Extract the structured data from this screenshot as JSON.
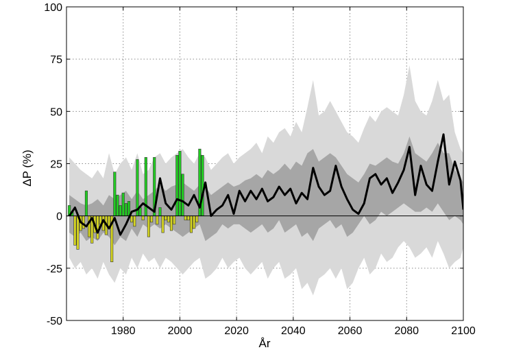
{
  "chart_data": {
    "type": "line",
    "xlabel": "År",
    "ylabel": "ΔP (%)",
    "xlim": [
      1960,
      2100
    ],
    "ylim": [
      -50,
      100
    ],
    "x_ticks": [
      1980,
      2000,
      2020,
      2040,
      2060,
      2080,
      2100
    ],
    "x_tick_labels": [
      "1980",
      "2000",
      "2020",
      "2040",
      "2060",
      "2080",
      "2100"
    ],
    "y_ticks": [
      100,
      75,
      50,
      25,
      0,
      -25,
      -50
    ],
    "y_tick_labels": [
      "100",
      "75",
      "50",
      "25",
      "0",
      "-25",
      "-50"
    ],
    "grid": true,
    "colors": {
      "outer_band": "#d9d9d9",
      "inner_band": "#a6a6a6",
      "median_line": "#000000",
      "observed_positive": "#22cc22",
      "observed_negative": "#d4d422",
      "zero_line": "#000000"
    },
    "x": [
      1961,
      1963,
      1965,
      1967,
      1969,
      1971,
      1973,
      1975,
      1977,
      1979,
      1981,
      1983,
      1985,
      1987,
      1989,
      1991,
      1993,
      1995,
      1997,
      1999,
      2001,
      2003,
      2005,
      2007,
      2009,
      2011,
      2013,
      2015,
      2017,
      2019,
      2021,
      2023,
      2025,
      2027,
      2029,
      2031,
      2033,
      2035,
      2037,
      2039,
      2041,
      2043,
      2045,
      2047,
      2049,
      2051,
      2053,
      2055,
      2057,
      2059,
      2061,
      2063,
      2065,
      2067,
      2069,
      2071,
      2073,
      2075,
      2077,
      2079,
      2081,
      2083,
      2085,
      2087,
      2089,
      2091,
      2093,
      2095,
      2097,
      2099,
      2100
    ],
    "series": [
      {
        "role": "outer-band",
        "upper": [
          28,
          25,
          22,
          20,
          18,
          22,
          18,
          30,
          20,
          25,
          28,
          22,
          30,
          20,
          22,
          28,
          30,
          25,
          28,
          30,
          32,
          28,
          25,
          30,
          28,
          22,
          25,
          28,
          30,
          25,
          28,
          30,
          32,
          35,
          30,
          38,
          35,
          40,
          42,
          38,
          45,
          40,
          52,
          65,
          48,
          50,
          55,
          50,
          45,
          40,
          38,
          35,
          42,
          48,
          45,
          50,
          52,
          50,
          48,
          58,
          72,
          55,
          50,
          48,
          55,
          65,
          55,
          58,
          40,
          32,
          30
        ],
        "lower": [
          -20,
          -25,
          -22,
          -28,
          -25,
          -30,
          -22,
          -28,
          -32,
          -25,
          -28,
          -20,
          -25,
          -18,
          -22,
          -20,
          -25,
          -20,
          -22,
          -25,
          -28,
          -25,
          -22,
          -20,
          -30,
          -28,
          -25,
          -20,
          -25,
          -22,
          -20,
          -25,
          -28,
          -25,
          -22,
          -30,
          -25,
          -22,
          -30,
          -28,
          -25,
          -35,
          -32,
          -38,
          -30,
          -28,
          -25,
          -30,
          -25,
          -35,
          -32,
          -25,
          -20,
          -28,
          -25,
          -18,
          -22,
          -20,
          -15,
          -12,
          -15,
          -20,
          -18,
          -15,
          -20,
          -12,
          -18,
          -25,
          -22,
          -20,
          -15
        ]
      },
      {
        "role": "inner-band",
        "upper": [
          10,
          8,
          6,
          5,
          6,
          8,
          5,
          10,
          8,
          10,
          12,
          8,
          12,
          8,
          10,
          12,
          15,
          12,
          14,
          15,
          16,
          14,
          12,
          15,
          14,
          10,
          12,
          14,
          16,
          14,
          15,
          17,
          18,
          20,
          18,
          22,
          20,
          22,
          25,
          22,
          26,
          24,
          30,
          32,
          26,
          28,
          30,
          28,
          24,
          20,
          18,
          16,
          20,
          25,
          24,
          26,
          28,
          26,
          25,
          30,
          38,
          30,
          28,
          26,
          30,
          35,
          30,
          30,
          22,
          18,
          16
        ],
        "lower": [
          -8,
          -10,
          -8,
          -12,
          -10,
          -12,
          -8,
          -10,
          -14,
          -10,
          -12,
          -6,
          -10,
          -4,
          -6,
          -4,
          -6,
          -4,
          -6,
          -8,
          -10,
          -8,
          -6,
          -4,
          -12,
          -10,
          -8,
          -4,
          -6,
          -4,
          -4,
          -6,
          -8,
          -6,
          -4,
          -8,
          -6,
          -2,
          -8,
          -6,
          -4,
          -10,
          -8,
          -12,
          -6,
          -4,
          -2,
          -6,
          -4,
          -10,
          -8,
          -4,
          0,
          -4,
          -2,
          2,
          0,
          2,
          4,
          6,
          4,
          2,
          2,
          4,
          2,
          6,
          2,
          -2,
          0,
          -2,
          -4
        ]
      },
      {
        "name": "",
        "role": "median",
        "values": [
          0,
          4,
          -3,
          -5,
          -1,
          -8,
          -2,
          -6,
          -1,
          -9,
          -4,
          2,
          3,
          6,
          4,
          2,
          18,
          6,
          3,
          8,
          7,
          5,
          10,
          4,
          16,
          0,
          3,
          5,
          10,
          1,
          12,
          7,
          12,
          8,
          13,
          7,
          9,
          14,
          10,
          13,
          6,
          11,
          8,
          23,
          14,
          10,
          12,
          24,
          14,
          8,
          3,
          1,
          6,
          18,
          20,
          15,
          18,
          11,
          16,
          22,
          33,
          10,
          24,
          15,
          12,
          26,
          39,
          15,
          26,
          17,
          3
        ]
      }
    ],
    "observed": {
      "x": [
        1961,
        1962,
        1963,
        1964,
        1965,
        1966,
        1967,
        1968,
        1969,
        1970,
        1971,
        1972,
        1973,
        1974,
        1975,
        1976,
        1977,
        1978,
        1979,
        1980,
        1981,
        1982,
        1983,
        1984,
        1985,
        1986,
        1987,
        1988,
        1989,
        1990,
        1991,
        1992,
        1993,
        1994,
        1995,
        1996,
        1997,
        1998,
        1999,
        2000,
        2001,
        2002,
        2003,
        2004,
        2005,
        2006,
        2007,
        2008
      ],
      "values": [
        5,
        2,
        -14,
        -16,
        -7,
        -6,
        12,
        -10,
        -13,
        -8,
        -11,
        -4,
        -7,
        -9,
        -5,
        -22,
        21,
        10,
        5,
        11,
        6,
        7,
        -3,
        -5,
        27,
        4,
        -2,
        28,
        -10,
        -3,
        28,
        -4,
        4,
        -8,
        -2,
        -3,
        -7,
        -4,
        29,
        31,
        20,
        -2,
        -2,
        -8,
        -6,
        -3,
        32,
        29
      ]
    }
  }
}
